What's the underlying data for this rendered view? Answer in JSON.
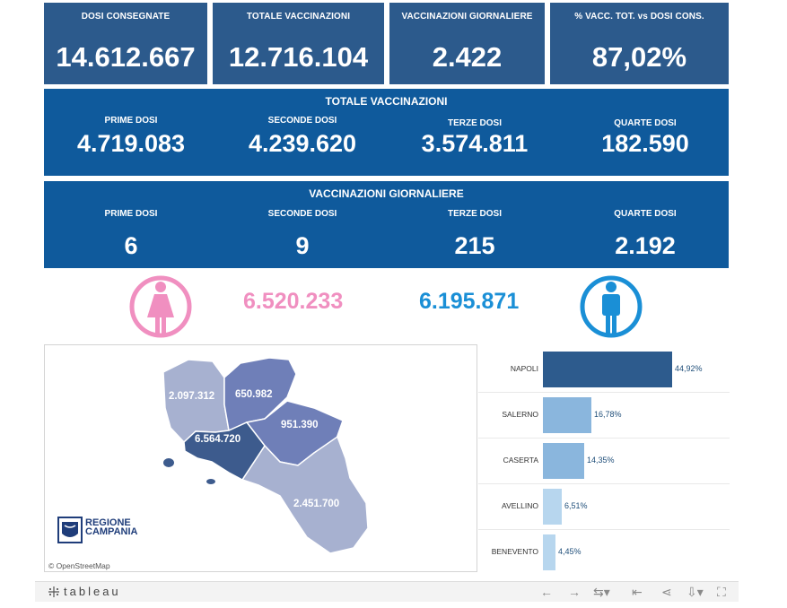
{
  "kpis": [
    {
      "label": "DOSI  CONSEGNATE",
      "value": "14.612.667"
    },
    {
      "label": "TOTALE VACCINAZIONI",
      "value": "12.716.104"
    },
    {
      "label": "VACCINAZIONI GIORNALIERE",
      "value": "2.422"
    },
    {
      "label": "% VACC. TOT. vs DOSI CONS.",
      "value": "87,02%"
    }
  ],
  "totale": {
    "title": "TOTALE VACCINAZIONI",
    "items": [
      {
        "label": "PRIME DOSI",
        "value": "4.719.083"
      },
      {
        "label": "SECONDE DOSI",
        "value": "4.239.620"
      },
      {
        "label": "TERZE DOSI",
        "value": "3.574.811"
      },
      {
        "label": "QUARTE DOSI",
        "value": "182.590"
      }
    ]
  },
  "giornaliere": {
    "title": "VACCINAZIONI GIORNALIERE",
    "items": [
      {
        "label": "PRIME DOSI",
        "value": "6"
      },
      {
        "label": "SECONDE DOSI",
        "value": "9"
      },
      {
        "label": "TERZE DOSI",
        "value": "215"
      },
      {
        "label": "QUARTE DOSI",
        "value": "2.192"
      }
    ]
  },
  "gender": {
    "female_value": "6.520.233",
    "male_value": "6.195.871",
    "female_color": "#f08fc0",
    "male_color": "#1a8fd6",
    "female_icon": "female-person-icon",
    "male_icon": "male-person-icon"
  },
  "map": {
    "labels": {
      "caserta": "2.097.312",
      "benevento": "650.982",
      "avellino": "951.390",
      "napoli": "6.564.720",
      "salerno": "2.451.700"
    },
    "logo_line1": "REGIONE",
    "logo_line2": "CAMPANIA",
    "attribution": "© OpenStreetMap"
  },
  "chart_data": {
    "type": "bar",
    "orientation": "horizontal",
    "categories": [
      "NAPOLI",
      "SALERNO",
      "CASERTA",
      "AVELLINO",
      "BENEVENTO"
    ],
    "values": [
      44.92,
      16.78,
      14.35,
      6.51,
      4.45
    ],
    "labels": [
      "44,92%",
      "16,78%",
      "14,35%",
      "6,51%",
      "4,45%"
    ],
    "colors": [
      "#2d5b8d",
      "#8ab6dd",
      "#8ab6dd",
      "#b7d6ee",
      "#b7d6ee"
    ],
    "xlim": [
      0,
      50
    ]
  },
  "footer": {
    "brand": "tableau",
    "icons": [
      "undo-icon",
      "redo-icon",
      "revert-icon",
      "reset-icon",
      "share-icon",
      "download-icon",
      "fullscreen-icon"
    ]
  }
}
